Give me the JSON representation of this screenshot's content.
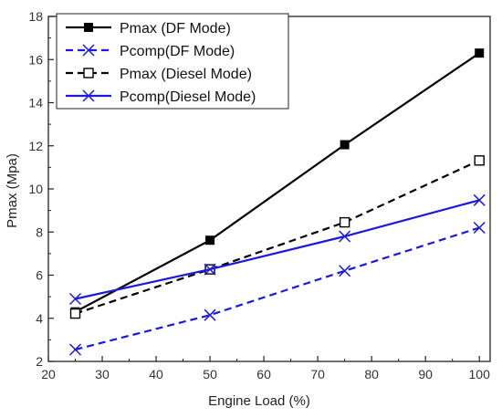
{
  "chart_data": {
    "type": "line",
    "title": "",
    "xlabel": "Engine Load (%)",
    "ylabel": "Pmax (Mpa)",
    "xlim": [
      20,
      102
    ],
    "ylim": [
      2,
      18
    ],
    "xticks": [
      "20",
      "30",
      "40",
      "50",
      "60",
      "70",
      "80",
      "90",
      "100"
    ],
    "yticks": [
      "2",
      "4",
      "6",
      "8",
      "10",
      "12",
      "14",
      "16",
      "18"
    ],
    "grid": false,
    "legend_position": "top-left",
    "x": [
      25,
      50,
      75,
      100
    ],
    "series": [
      {
        "name": "Pmax  (DF Mode)",
        "values": [
          4.3,
          7.62,
          12.05,
          16.3
        ],
        "color": "#000000",
        "line_style": "solid",
        "marker": "filled-square"
      },
      {
        "name": "Pcomp(DF Mode)",
        "values": [
          2.55,
          4.15,
          6.2,
          8.2
        ],
        "color": "#1a1adb",
        "line_style": "dashed",
        "marker": "x"
      },
      {
        "name": "Pmax  (Diesel Mode)",
        "values": [
          4.22,
          6.27,
          8.45,
          11.32
        ],
        "color": "#000000",
        "line_style": "dashed",
        "marker": "open-square"
      },
      {
        "name": "Pcomp(Diesel Mode)",
        "values": [
          4.9,
          6.27,
          7.8,
          9.48
        ],
        "color": "#1a1adb",
        "line_style": "solid",
        "marker": "x"
      }
    ]
  }
}
